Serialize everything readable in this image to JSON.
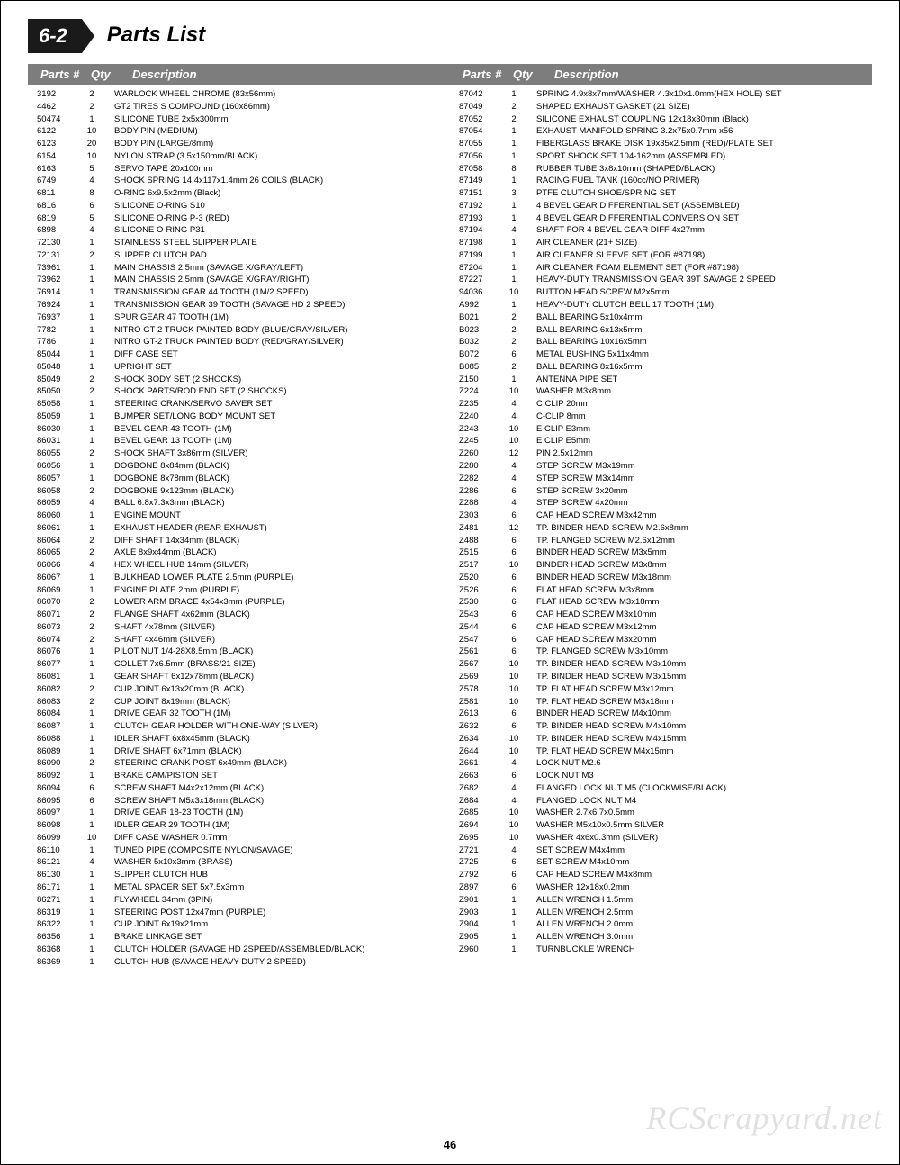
{
  "section_number": "6-2",
  "page_title": "Parts List",
  "page_number": "46",
  "watermark": "RCScrapyard.net",
  "header": {
    "parts": "Parts #",
    "qty": "Qty",
    "desc": "Description"
  },
  "left": [
    {
      "p": "3192",
      "q": "2",
      "d": "WARLOCK WHEEL CHROME (83x56mm)"
    },
    {
      "p": "4462",
      "q": "2",
      "d": "GT2 TIRES S COMPOUND (160x86mm)"
    },
    {
      "p": "50474",
      "q": "1",
      "d": "SILICONE TUBE 2x5x300mm"
    },
    {
      "p": "6122",
      "q": "10",
      "d": "BODY PIN (MEDIUM)"
    },
    {
      "p": "6123",
      "q": "20",
      "d": "BODY PIN (LARGE/8mm)"
    },
    {
      "p": "6154",
      "q": "10",
      "d": "NYLON STRAP (3.5x150mm/BLACK)"
    },
    {
      "p": "6163",
      "q": "5",
      "d": "SERVO TAPE 20x100mm"
    },
    {
      "p": "6749",
      "q": "4",
      "d": "SHOCK SPRING 14.4x117x1.4mm 26 COILS (BLACK)"
    },
    {
      "p": "6811",
      "q": "8",
      "d": "O-RING 6x9.5x2mm (Black)"
    },
    {
      "p": "6816",
      "q": "6",
      "d": "SILICONE O-RING S10"
    },
    {
      "p": "6819",
      "q": "5",
      "d": "SILICONE O-RING P-3 (RED)"
    },
    {
      "p": "6898",
      "q": "4",
      "d": "SILICONE O-RING P31"
    },
    {
      "p": "72130",
      "q": "1",
      "d": "STAINLESS STEEL SLIPPER PLATE"
    },
    {
      "p": "72131",
      "q": "2",
      "d": "SLIPPER CLUTCH PAD"
    },
    {
      "p": "73961",
      "q": "1",
      "d": "MAIN CHASSIS 2.5mm (SAVAGE X/GRAY/LEFT)"
    },
    {
      "p": "73962",
      "q": "1",
      "d": "MAIN CHASSIS 2.5mm (SAVAGE X/GRAY/RIGHT)"
    },
    {
      "p": "76914",
      "q": "1",
      "d": "TRANSMISSION GEAR 44 TOOTH (1M/2 SPEED)"
    },
    {
      "p": "76924",
      "q": "1",
      "d": "TRANSMISSION GEAR 39 TOOTH (SAVAGE HD 2 SPEED)"
    },
    {
      "p": "76937",
      "q": "1",
      "d": "SPUR GEAR 47 TOOTH (1M)"
    },
    {
      "p": "7782",
      "q": "1",
      "d": "NITRO GT-2 TRUCK PAINTED BODY (BLUE/GRAY/SILVER)"
    },
    {
      "p": "7786",
      "q": "1",
      "d": "NITRO GT-2 TRUCK PAINTED BODY (RED/GRAY/SILVER)"
    },
    {
      "p": "85044",
      "q": "1",
      "d": "DIFF CASE SET"
    },
    {
      "p": "85048",
      "q": "1",
      "d": "UPRIGHT SET"
    },
    {
      "p": "85049",
      "q": "2",
      "d": "SHOCK BODY SET (2 SHOCKS)"
    },
    {
      "p": "85050",
      "q": "2",
      "d": "SHOCK PARTS/ROD END SET (2 SHOCKS)"
    },
    {
      "p": "85058",
      "q": "1",
      "d": "STEERING CRANK/SERVO SAVER SET"
    },
    {
      "p": "85059",
      "q": "1",
      "d": "BUMPER SET/LONG BODY MOUNT SET"
    },
    {
      "p": "86030",
      "q": "1",
      "d": "BEVEL GEAR 43 TOOTH (1M)"
    },
    {
      "p": "86031",
      "q": "1",
      "d": "BEVEL GEAR 13 TOOTH (1M)"
    },
    {
      "p": "86055",
      "q": "2",
      "d": "SHOCK SHAFT 3x86mm (SILVER)"
    },
    {
      "p": "86056",
      "q": "1",
      "d": "DOGBONE 8x84mm (BLACK)"
    },
    {
      "p": "86057",
      "q": "1",
      "d": "DOGBONE 8x78mm (BLACK)"
    },
    {
      "p": "86058",
      "q": "2",
      "d": "DOGBONE 9x123mm (BLACK)"
    },
    {
      "p": "86059",
      "q": "4",
      "d": "BALL 6.8x7.3x3mm (BLACK)"
    },
    {
      "p": "86060",
      "q": "1",
      "d": "ENGINE MOUNT"
    },
    {
      "p": "86061",
      "q": "1",
      "d": "EXHAUST HEADER (REAR EXHAUST)"
    },
    {
      "p": "86064",
      "q": "2",
      "d": "DIFF SHAFT 14x34mm (BLACK)"
    },
    {
      "p": "86065",
      "q": "2",
      "d": "AXLE 8x9x44mm (BLACK)"
    },
    {
      "p": "86066",
      "q": "4",
      "d": "HEX WHEEL HUB 14mm (SILVER)"
    },
    {
      "p": "86067",
      "q": "1",
      "d": "BULKHEAD LOWER PLATE 2.5mm (PURPLE)"
    },
    {
      "p": "86069",
      "q": "1",
      "d": "ENGINE PLATE 2mm (PURPLE)"
    },
    {
      "p": "86070",
      "q": "2",
      "d": "LOWER ARM BRACE 4x54x3mm (PURPLE)"
    },
    {
      "p": "86071",
      "q": "2",
      "d": "FLANGE SHAFT 4x62mm (BLACK)"
    },
    {
      "p": "86073",
      "q": "2",
      "d": "SHAFT 4x78mm (SILVER)"
    },
    {
      "p": "86074",
      "q": "2",
      "d": "SHAFT 4x46mm (SILVER)"
    },
    {
      "p": "86076",
      "q": "1",
      "d": "PILOT NUT 1/4-28X8.5mm (BLACK)"
    },
    {
      "p": "86077",
      "q": "1",
      "d": "COLLET 7x6.5mm (BRASS/21 SIZE)"
    },
    {
      "p": "86081",
      "q": "1",
      "d": "GEAR SHAFT 6x12x78mm (BLACK)"
    },
    {
      "p": "86082",
      "q": "2",
      "d": "CUP JOINT 6x13x20mm (BLACK)"
    },
    {
      "p": "86083",
      "q": "2",
      "d": "CUP JOINT 8x19mm (BLACK)"
    },
    {
      "p": "86084",
      "q": "1",
      "d": "DRIVE GEAR 32 TOOTH (1M)"
    },
    {
      "p": "86087",
      "q": "1",
      "d": "CLUTCH GEAR HOLDER WITH ONE-WAY (SILVER)"
    },
    {
      "p": "86088",
      "q": "1",
      "d": "IDLER SHAFT 6x8x45mm (BLACK)"
    },
    {
      "p": "86089",
      "q": "1",
      "d": "DRIVE SHAFT 6x71mm (BLACK)"
    },
    {
      "p": "86090",
      "q": "2",
      "d": "STEERING CRANK POST 6x49mm (BLACK)"
    },
    {
      "p": "86092",
      "q": "1",
      "d": "BRAKE CAM/PISTON SET"
    },
    {
      "p": "86094",
      "q": "6",
      "d": "SCREW SHAFT M4x2x12mm (BLACK)"
    },
    {
      "p": "86095",
      "q": "6",
      "d": "SCREW SHAFT M5x3x18mm (BLACK)"
    },
    {
      "p": "86097",
      "q": "1",
      "d": "DRIVE GEAR 18-23 TOOTH (1M)"
    },
    {
      "p": "86098",
      "q": "1",
      "d": "IDLER GEAR 29 TOOTH (1M)"
    },
    {
      "p": "86099",
      "q": "10",
      "d": "DIFF CASE WASHER 0.7mm"
    },
    {
      "p": "86110",
      "q": "1",
      "d": "TUNED PIPE (COMPOSITE NYLON/SAVAGE)"
    },
    {
      "p": "86121",
      "q": "4",
      "d": "WASHER 5x10x3mm (BRASS)"
    },
    {
      "p": "86130",
      "q": "1",
      "d": "SLIPPER CLUTCH HUB"
    },
    {
      "p": "86171",
      "q": "1",
      "d": "METAL SPACER SET 5x7.5x3mm"
    },
    {
      "p": "86271",
      "q": "1",
      "d": "FLYWHEEL 34mm (3PIN)"
    },
    {
      "p": "86319",
      "q": "1",
      "d": "STEERING POST 12x47mm (PURPLE)"
    },
    {
      "p": "86322",
      "q": "1",
      "d": "CUP JOINT 6x19x21mm"
    },
    {
      "p": "86356",
      "q": "1",
      "d": "BRAKE LINKAGE SET"
    },
    {
      "p": "86368",
      "q": "1",
      "d": "CLUTCH HOLDER (SAVAGE HD 2SPEED/ASSEMBLED/BLACK)"
    },
    {
      "p": "86369",
      "q": "1",
      "d": "CLUTCH HUB (SAVAGE HEAVY DUTY 2 SPEED)"
    }
  ],
  "right": [
    {
      "p": "87042",
      "q": "1",
      "d": "SPRING 4.9x8x7mm/WASHER 4.3x10x1.0mm(HEX HOLE) SET"
    },
    {
      "p": "87049",
      "q": "2",
      "d": "SHAPED EXHAUST GASKET (21 SIZE)"
    },
    {
      "p": "87052",
      "q": "2",
      "d": "SILICONE EXHAUST COUPLING 12x18x30mm (Black)"
    },
    {
      "p": "87054",
      "q": "1",
      "d": "EXHAUST MANIFOLD SPRING 3.2x75x0.7mm x56"
    },
    {
      "p": "87055",
      "q": "1",
      "d": "FIBERGLASS BRAKE DISK 19x35x2.5mm (RED)/PLATE SET"
    },
    {
      "p": "87056",
      "q": "1",
      "d": "SPORT SHOCK SET 104-162mm (ASSEMBLED)"
    },
    {
      "p": "87058",
      "q": "8",
      "d": "RUBBER TUBE 3x8x10mm (SHAPED/BLACK)"
    },
    {
      "p": "87149",
      "q": "1",
      "d": "RACING FUEL TANK (160cc/NO PRIMER)"
    },
    {
      "p": "87151",
      "q": "3",
      "d": "PTFE CLUTCH SHOE/SPRING SET"
    },
    {
      "p": "87192",
      "q": "1",
      "d": "4 BEVEL GEAR DIFFERENTIAL SET (ASSEMBLED)"
    },
    {
      "p": "87193",
      "q": "1",
      "d": "4 BEVEL GEAR DIFFERENTIAL CONVERSION SET"
    },
    {
      "p": "87194",
      "q": "4",
      "d": "SHAFT FOR 4 BEVEL GEAR DIFF 4x27mm"
    },
    {
      "p": "87198",
      "q": "1",
      "d": "AIR CLEANER (21+ SIZE)"
    },
    {
      "p": "87199",
      "q": "1",
      "d": "AIR CLEANER SLEEVE SET (FOR #87198)"
    },
    {
      "p": "87204",
      "q": "1",
      "d": "AIR CLEANER FOAM ELEMENT SET (FOR #87198)"
    },
    {
      "p": "87227",
      "q": "1",
      "d": "HEAVY-DUTY TRANSMISSION GEAR 39T SAVAGE 2 SPEED"
    },
    {
      "p": "94036",
      "q": "10",
      "d": "BUTTON HEAD SCREW M2x5mm"
    },
    {
      "p": "A992",
      "q": "1",
      "d": "HEAVY-DUTY CLUTCH BELL 17 TOOTH (1M)"
    },
    {
      "p": "B021",
      "q": "2",
      "d": "BALL BEARING 5x10x4mm"
    },
    {
      "p": "B023",
      "q": "2",
      "d": "BALL BEARING 6x13x5mm"
    },
    {
      "p": "B032",
      "q": "2",
      "d": "BALL BEARING 10x16x5mm"
    },
    {
      "p": "B072",
      "q": "6",
      "d": "METAL BUSHING 5x11x4mm"
    },
    {
      "p": "B085",
      "q": "2",
      "d": "BALL BEARING 8x16x5mm"
    },
    {
      "p": "Z150",
      "q": "1",
      "d": "ANTENNA PIPE SET"
    },
    {
      "p": "Z224",
      "q": "10",
      "d": "WASHER M3x8mm"
    },
    {
      "p": "Z235",
      "q": "4",
      "d": "C CLIP 20mm"
    },
    {
      "p": "Z240",
      "q": "4",
      "d": "C-CLIP 8mm"
    },
    {
      "p": "Z243",
      "q": "10",
      "d": "E CLIP E3mm"
    },
    {
      "p": "Z245",
      "q": "10",
      "d": "E CLIP E5mm"
    },
    {
      "p": "Z260",
      "q": "12",
      "d": "PIN 2.5x12mm"
    },
    {
      "p": "Z280",
      "q": "4",
      "d": "STEP SCREW M3x19mm"
    },
    {
      "p": "Z282",
      "q": "4",
      "d": "STEP SCREW M3x14mm"
    },
    {
      "p": "Z286",
      "q": "6",
      "d": "STEP SCREW 3x20mm"
    },
    {
      "p": "Z288",
      "q": "4",
      "d": "STEP SCREW 4x20mm"
    },
    {
      "p": "Z303",
      "q": "6",
      "d": "CAP HEAD SCREW M3x42mm"
    },
    {
      "p": "Z481",
      "q": "12",
      "d": "TP. BINDER HEAD SCREW M2.6x8mm"
    },
    {
      "p": "Z488",
      "q": "6",
      "d": "TP. FLANGED SCREW M2.6x12mm"
    },
    {
      "p": "Z515",
      "q": "6",
      "d": "BINDER HEAD SCREW M3x5mm"
    },
    {
      "p": "Z517",
      "q": "10",
      "d": "BINDER HEAD SCREW M3x8mm"
    },
    {
      "p": "Z520",
      "q": "6",
      "d": "BINDER HEAD SCREW M3x18mm"
    },
    {
      "p": "Z526",
      "q": "6",
      "d": "FLAT HEAD SCREW M3x8mm"
    },
    {
      "p": "Z530",
      "q": "6",
      "d": "FLAT HEAD SCREW M3x18mm"
    },
    {
      "p": "Z543",
      "q": "6",
      "d": "CAP HEAD SCREW M3x10mm"
    },
    {
      "p": "Z544",
      "q": "6",
      "d": "CAP HEAD SCREW M3x12mm"
    },
    {
      "p": "Z547",
      "q": "6",
      "d": "CAP HEAD SCREW M3x20mm"
    },
    {
      "p": "Z561",
      "q": "6",
      "d": "TP. FLANGED SCREW M3x10mm"
    },
    {
      "p": "Z567",
      "q": "10",
      "d": "TP. BINDER HEAD SCREW M3x10mm"
    },
    {
      "p": "Z569",
      "q": "10",
      "d": "TP. BINDER HEAD SCREW M3x15mm"
    },
    {
      "p": "Z578",
      "q": "10",
      "d": "TP. FLAT HEAD SCREW M3x12mm"
    },
    {
      "p": "Z581",
      "q": "10",
      "d": "TP. FLAT HEAD SCREW M3x18mm"
    },
    {
      "p": "Z613",
      "q": "6",
      "d": "BINDER HEAD SCREW M4x10mm"
    },
    {
      "p": "Z632",
      "q": "6",
      "d": "TP. BINDER HEAD SCREW M4x10mm"
    },
    {
      "p": "Z634",
      "q": "10",
      "d": "TP. BINDER HEAD SCREW M4x15mm"
    },
    {
      "p": "Z644",
      "q": "10",
      "d": "TP. FLAT HEAD SCREW M4x15mm"
    },
    {
      "p": "Z661",
      "q": "4",
      "d": "LOCK NUT M2.6"
    },
    {
      "p": "Z663",
      "q": "6",
      "d": "LOCK NUT M3"
    },
    {
      "p": "Z682",
      "q": "4",
      "d": "FLANGED LOCK NUT M5 (CLOCKWISE/BLACK)"
    },
    {
      "p": "Z684",
      "q": "4",
      "d": "FLANGED LOCK NUT M4"
    },
    {
      "p": "Z685",
      "q": "10",
      "d": "WASHER 2.7x6.7x0.5mm"
    },
    {
      "p": "Z694",
      "q": "10",
      "d": "WASHER M5x10x0.5mm SILVER"
    },
    {
      "p": "Z695",
      "q": "10",
      "d": "WASHER 4x6x0.3mm (SILVER)"
    },
    {
      "p": "Z721",
      "q": "4",
      "d": "SET SCREW M4x4mm"
    },
    {
      "p": "Z725",
      "q": "6",
      "d": "SET SCREW M4x10mm"
    },
    {
      "p": "Z792",
      "q": "6",
      "d": "CAP HEAD SCREW M4x8mm"
    },
    {
      "p": "Z897",
      "q": "6",
      "d": "WASHER 12x18x0.2mm"
    },
    {
      "p": "Z901",
      "q": "1",
      "d": "ALLEN WRENCH 1.5mm"
    },
    {
      "p": "Z903",
      "q": "1",
      "d": "ALLEN WRENCH 2.5mm"
    },
    {
      "p": "Z904",
      "q": "1",
      "d": "ALLEN WRENCH 2.0mm"
    },
    {
      "p": "Z905",
      "q": "1",
      "d": "ALLEN WRENCH 3.0mm"
    },
    {
      "p": "Z960",
      "q": "1",
      "d": "TURNBUCKLE WRENCH"
    }
  ]
}
